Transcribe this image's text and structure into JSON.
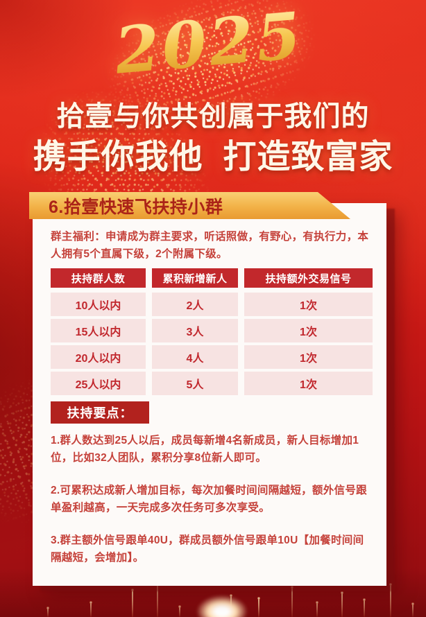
{
  "poster": {
    "year": "2025",
    "headline_line1": "拾壹与你共创属于我们的",
    "headline_line2": "携手你我他  打造致富家",
    "section": {
      "title": "6.拾壹快速飞扶持小群",
      "intro": "群主福利：申请成为群主要求，听话照做，有野心，有执行力，本人拥有5个直属下级，2个附属下级。",
      "table": {
        "headers": [
          "扶持群人数",
          "累积新增新人",
          "扶持额外交易信号"
        ],
        "rows": [
          [
            "10人以内",
            "2人",
            "1次"
          ],
          [
            "15人以内",
            "3人",
            "1次"
          ],
          [
            "20人以内",
            "4人",
            "1次"
          ],
          [
            "25人以内",
            "5人",
            "1次"
          ]
        ]
      },
      "points_label": "扶持要点：",
      "points": [
        "1.群人数达到25人以后，成员每新增4名新成员，新人目标增加1位，比如32人团队，累积分享8位新人即可。",
        "2.可累积达成新人增加目标，每次加餐时间间隔越短，额外信号跟单盈利越高，一天完成多次任务可多次享受。",
        "3.群主额外信号跟单40U，群成员额外信号跟单10U【加餐时间间隔越短，会增加】。"
      ]
    },
    "colors": {
      "background_red": "#cd1b16",
      "gold_accent": "#f2b147",
      "table_header_red": "#c2282c",
      "row_pink": "#f7e3e2",
      "badge_red": "#b2221e",
      "body_text_red": "#c5413a",
      "headline_white": "#fff7e8",
      "year_gold": "#f6c751"
    }
  }
}
